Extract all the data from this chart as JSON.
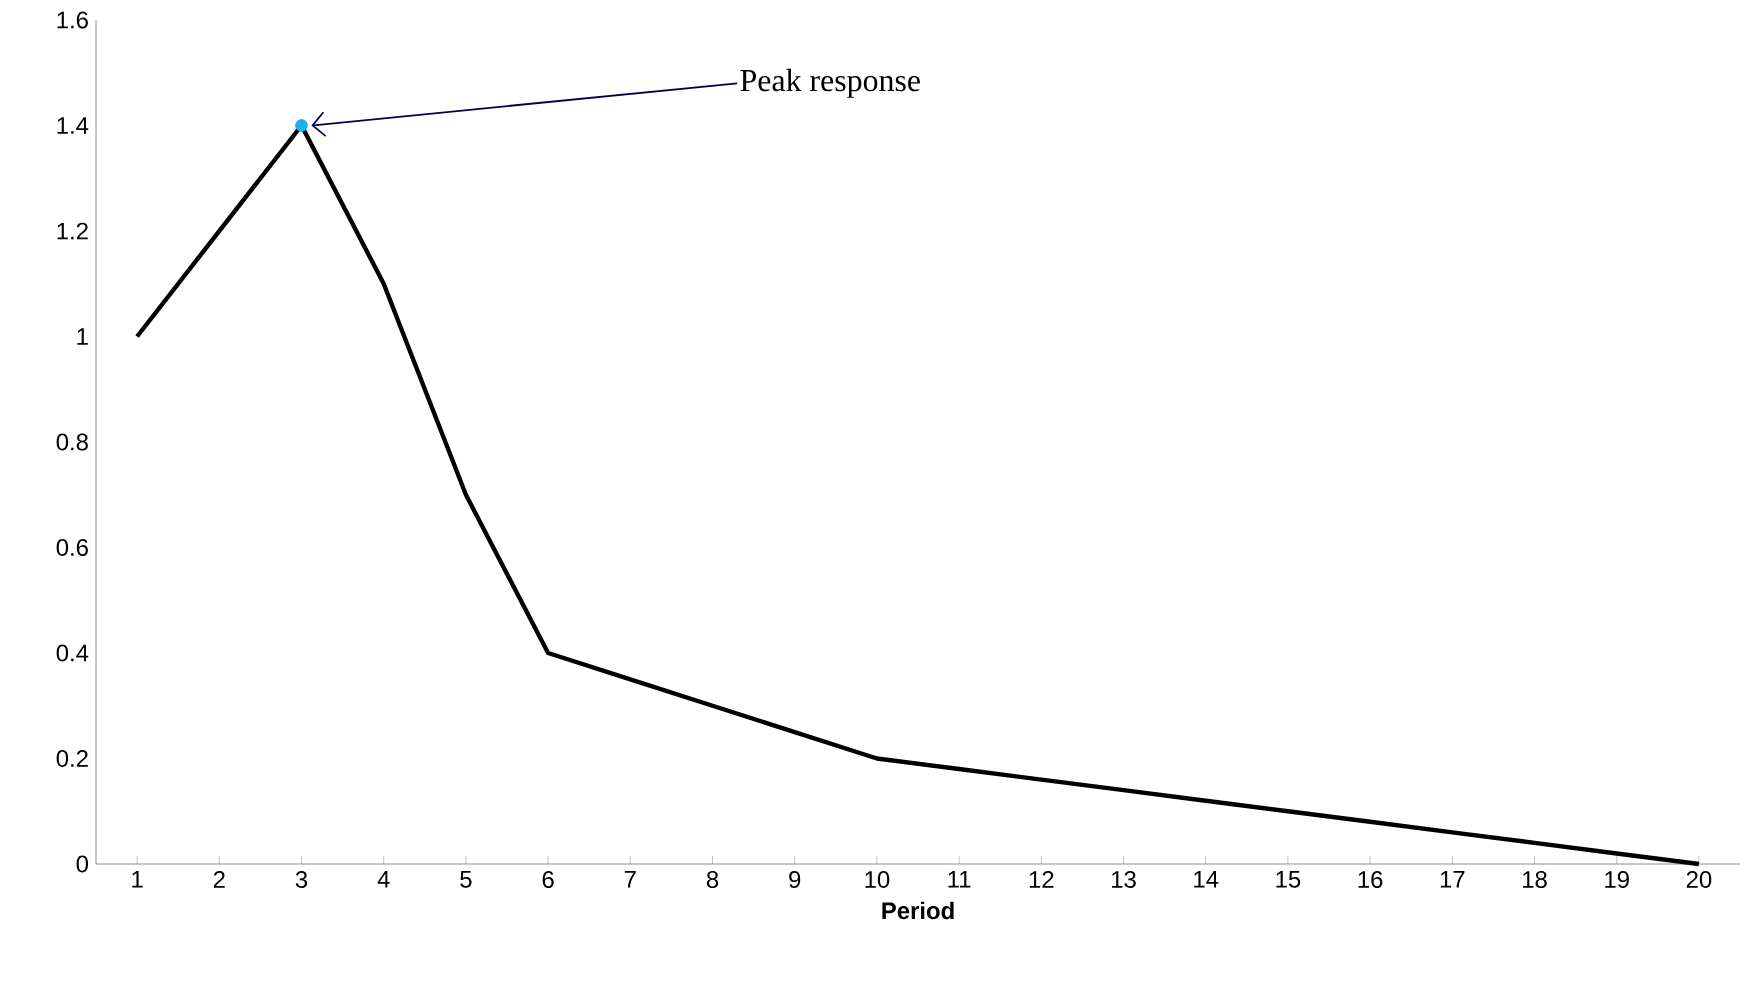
{
  "chart_data": {
    "type": "line",
    "xlabel": "Period",
    "categories": [
      "1",
      "2",
      "3",
      "4",
      "5",
      "6",
      "7",
      "8",
      "9",
      "10",
      "11",
      "12",
      "13",
      "14",
      "15",
      "16",
      "17",
      "18",
      "19",
      "20"
    ],
    "series": [
      {
        "color": "#000000",
        "marker": "none",
        "values": [
          1,
          1.2,
          1.4,
          1.1,
          0.7,
          0.4,
          0.35,
          0.3,
          0.25,
          0.2,
          0.18,
          0.16,
          0.14,
          0.12,
          0.1,
          0.08,
          0.06,
          0.04,
          0.02,
          0
        ]
      },
      {
        "type": "scatter",
        "color": "#1ab0e8",
        "marker": "circle",
        "x": [
          "3"
        ],
        "values": [
          1.4
        ]
      }
    ],
    "ylim": [
      0,
      1.6
    ],
    "yticks": [
      0,
      0.2,
      0.4,
      0.6,
      0.8,
      1,
      1.2,
      1.4,
      1.6
    ],
    "annotations": [
      {
        "text": "Peak response",
        "x": "3",
        "y": 1.4
      }
    ]
  }
}
